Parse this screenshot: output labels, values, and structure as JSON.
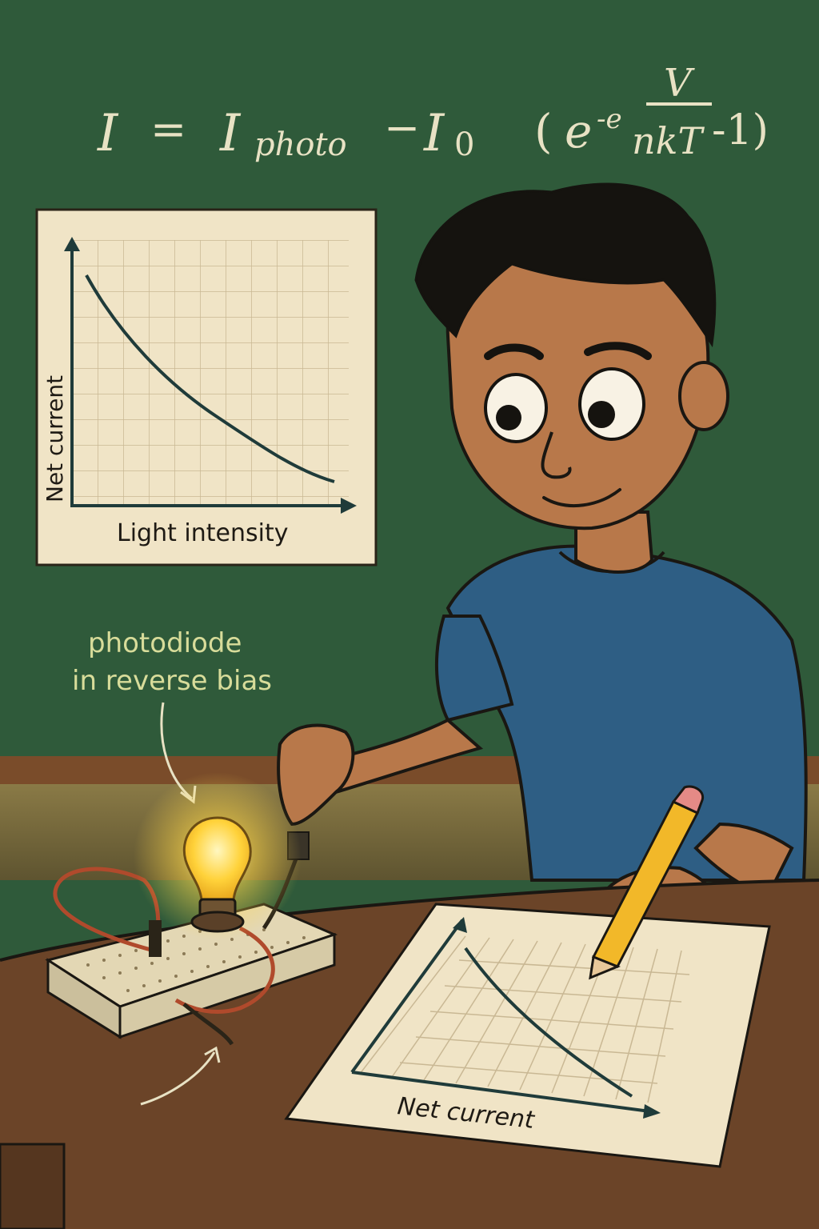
{
  "equation": {
    "lhs": "I",
    "eq": "=",
    "i_photo_main": "I",
    "i_photo_sub": "photo",
    "minus": "−",
    "i0_main": "I",
    "i0_sub": "0",
    "paren_open": "(",
    "exp_base": "e",
    "exp_pre": "-e",
    "frac_num": "V",
    "frac_den": "nkT",
    "exp_tail": "-1)"
  },
  "wall_chart": {
    "xlabel": "Light intensity",
    "ylabel": "Net current"
  },
  "callout": {
    "line1": "photodiode",
    "line2": "in reverse bias"
  },
  "paper_chart": {
    "xlabel": "Net current"
  },
  "colors": {
    "chalkboard": "#2f5a3a",
    "chalk": "#e8e2c4",
    "paper": "#f0e4c6",
    "grid": "#c9b894",
    "curve": "#1f3b3a",
    "shirt": "#2e5e84",
    "skin": "#b8784a",
    "desk": "#6b4428",
    "bulb_glow": "#ffd84a"
  }
}
